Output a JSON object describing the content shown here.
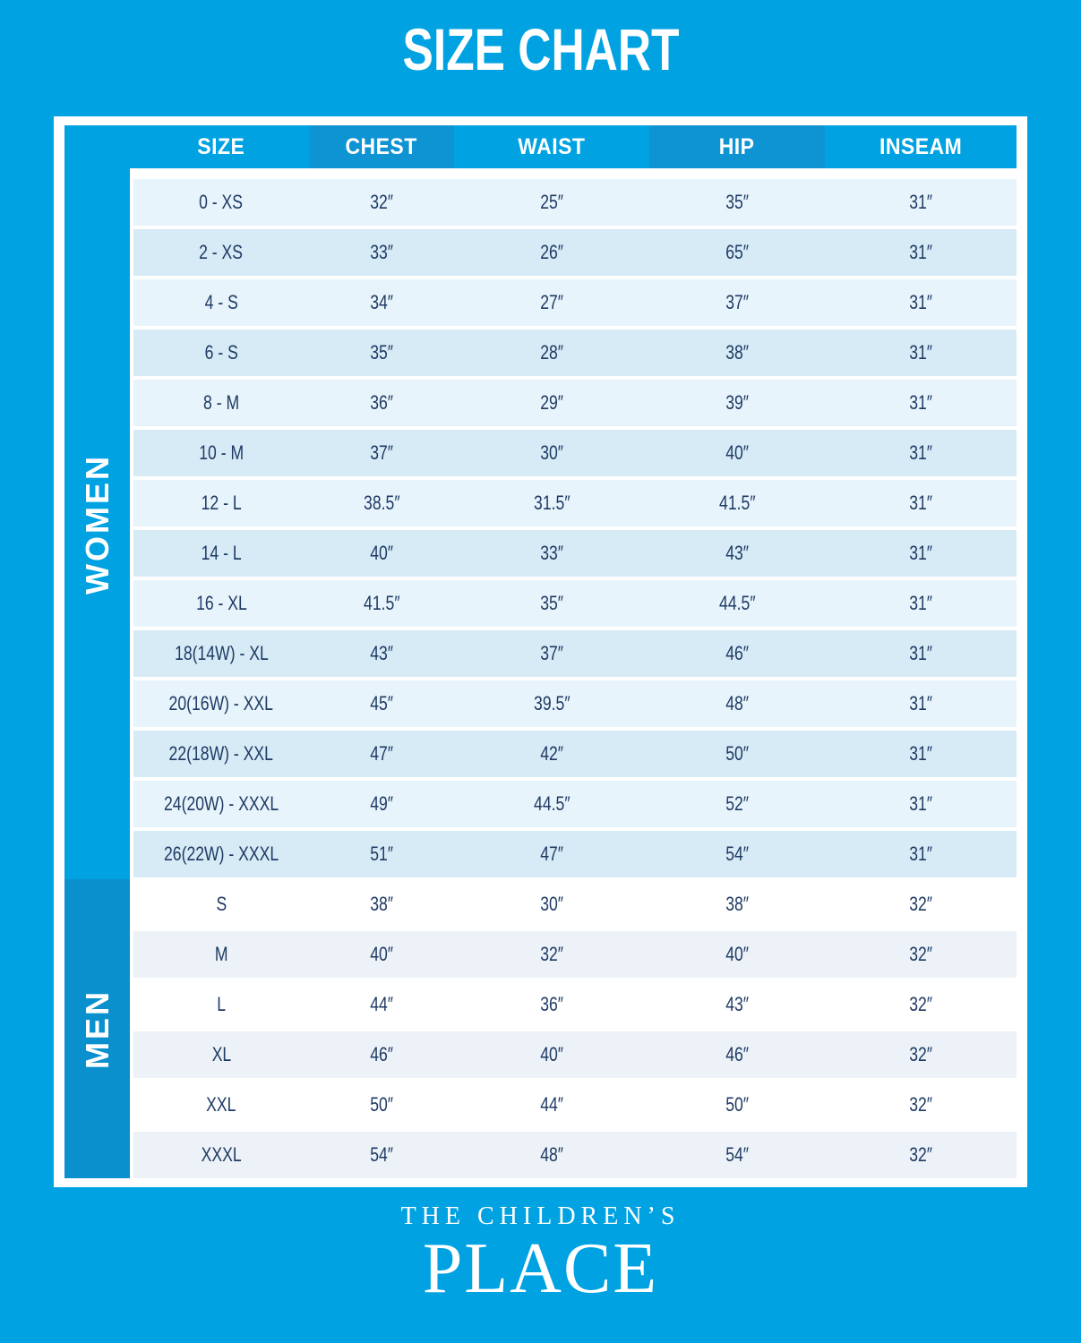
{
  "chart_data": {
    "type": "table",
    "title": "SIZE CHART",
    "columns": [
      "SIZE",
      "CHEST",
      "WAIST",
      "HIP",
      "INSEAM"
    ],
    "sections": [
      {
        "label": "WOMEN",
        "rows": [
          {
            "size": "0 - XS",
            "chest": "32″",
            "waist": "25″",
            "hip": "35″",
            "inseam": "31″"
          },
          {
            "size": "2 - XS",
            "chest": "33″",
            "waist": "26″",
            "hip": "65″",
            "inseam": "31″"
          },
          {
            "size": "4 - S",
            "chest": "34″",
            "waist": "27″",
            "hip": "37″",
            "inseam": "31″"
          },
          {
            "size": "6 - S",
            "chest": "35″",
            "waist": "28″",
            "hip": "38″",
            "inseam": "31″"
          },
          {
            "size": "8 - M",
            "chest": "36″",
            "waist": "29″",
            "hip": "39″",
            "inseam": "31″"
          },
          {
            "size": "10 - M",
            "chest": "37″",
            "waist": "30″",
            "hip": "40″",
            "inseam": "31″"
          },
          {
            "size": "12 - L",
            "chest": "38.5″",
            "waist": "31.5″",
            "hip": "41.5″",
            "inseam": "31″"
          },
          {
            "size": "14 - L",
            "chest": "40″",
            "waist": "33″",
            "hip": "43″",
            "inseam": "31″"
          },
          {
            "size": "16 - XL",
            "chest": "41.5″",
            "waist": "35″",
            "hip": "44.5″",
            "inseam": "31″"
          },
          {
            "size": "18(14W) - XL",
            "chest": "43″",
            "waist": "37″",
            "hip": "46″",
            "inseam": "31″"
          },
          {
            "size": "20(16W) - XXL",
            "chest": "45″",
            "waist": "39.5″",
            "hip": "48″",
            "inseam": "31″"
          },
          {
            "size": "22(18W) - XXL",
            "chest": "47″",
            "waist": "42″",
            "hip": "50″",
            "inseam": "31″"
          },
          {
            "size": "24(20W) - XXXL",
            "chest": "49″",
            "waist": "44.5″",
            "hip": "52″",
            "inseam": "31″"
          },
          {
            "size": "26(22W) - XXXL",
            "chest": "51″",
            "waist": "47″",
            "hip": "54″",
            "inseam": "31″"
          }
        ]
      },
      {
        "label": "MEN",
        "rows": [
          {
            "size": "S",
            "chest": "38″",
            "waist": "30″",
            "hip": "38″",
            "inseam": "32″"
          },
          {
            "size": "M",
            "chest": "40″",
            "waist": "32″",
            "hip": "40″",
            "inseam": "32″"
          },
          {
            "size": "L",
            "chest": "44″",
            "waist": "36″",
            "hip": "43″",
            "inseam": "32″"
          },
          {
            "size": "XL",
            "chest": "46″",
            "waist": "40″",
            "hip": "46″",
            "inseam": "32″"
          },
          {
            "size": "XXL",
            "chest": "50″",
            "waist": "44″",
            "hip": "50″",
            "inseam": "32″"
          },
          {
            "size": "XXXL",
            "chest": "54″",
            "waist": "48″",
            "hip": "54″",
            "inseam": "32″"
          }
        ]
      }
    ],
    "layout_hints": {
      "grid": false,
      "legend": "none"
    }
  },
  "footer": {
    "line1": "THE CHILDREN’S",
    "line2": "PLACE"
  },
  "colors": {
    "bg": "#00A2E2",
    "headerDark": "#0E93D3",
    "menSidebar": "#0B90CE",
    "womenRowLight": "#E8F4FB",
    "womenRowDark": "#D7EBF6",
    "menRowWhite": "#FFFFFF",
    "menRowLight": "#ECF2F7",
    "textNavy": "#1E3A64",
    "white": "#FFFFFF"
  }
}
